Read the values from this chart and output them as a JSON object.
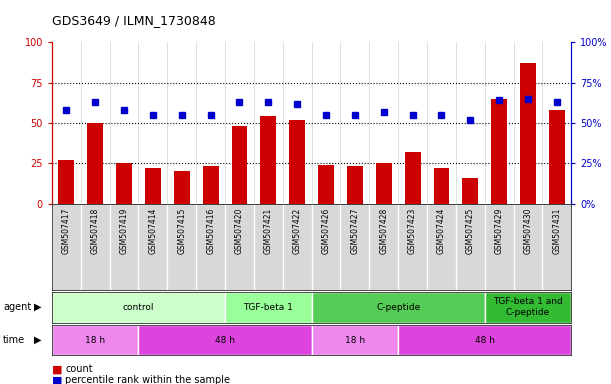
{
  "title": "GDS3649 / ILMN_1730848",
  "samples": [
    "GSM507417",
    "GSM507418",
    "GSM507419",
    "GSM507414",
    "GSM507415",
    "GSM507416",
    "GSM507420",
    "GSM507421",
    "GSM507422",
    "GSM507426",
    "GSM507427",
    "GSM507428",
    "GSM507423",
    "GSM507424",
    "GSM507425",
    "GSM507429",
    "GSM507430",
    "GSM507431"
  ],
  "counts": [
    27,
    50,
    25,
    22,
    20,
    23,
    48,
    54,
    52,
    24,
    23,
    25,
    32,
    22,
    16,
    65,
    87,
    58
  ],
  "percentiles": [
    58,
    63,
    58,
    55,
    55,
    55,
    63,
    63,
    62,
    55,
    55,
    57,
    55,
    55,
    52,
    64,
    65,
    63
  ],
  "bar_color": "#cc0000",
  "dot_color": "#0000cc",
  "ylim": [
    0,
    100
  ],
  "yticks": [
    0,
    25,
    50,
    75,
    100
  ],
  "agent_groups": [
    {
      "label": "control",
      "start": 0,
      "end": 6,
      "color": "#ccffcc"
    },
    {
      "label": "TGF-beta 1",
      "start": 6,
      "end": 9,
      "color": "#99ff99"
    },
    {
      "label": "C-peptide",
      "start": 9,
      "end": 15,
      "color": "#55cc55"
    },
    {
      "label": "TGF-beta 1 and\nC-peptide",
      "start": 15,
      "end": 18,
      "color": "#33bb33"
    }
  ],
  "time_groups": [
    {
      "label": "18 h",
      "start": 0,
      "end": 3,
      "color": "#ee88ee"
    },
    {
      "label": "48 h",
      "start": 3,
      "end": 9,
      "color": "#dd44dd"
    },
    {
      "label": "18 h",
      "start": 9,
      "end": 12,
      "color": "#ee88ee"
    },
    {
      "label": "48 h",
      "start": 12,
      "end": 18,
      "color": "#dd44dd"
    }
  ],
  "legend_count_label": "count",
  "legend_pct_label": "percentile rank within the sample"
}
